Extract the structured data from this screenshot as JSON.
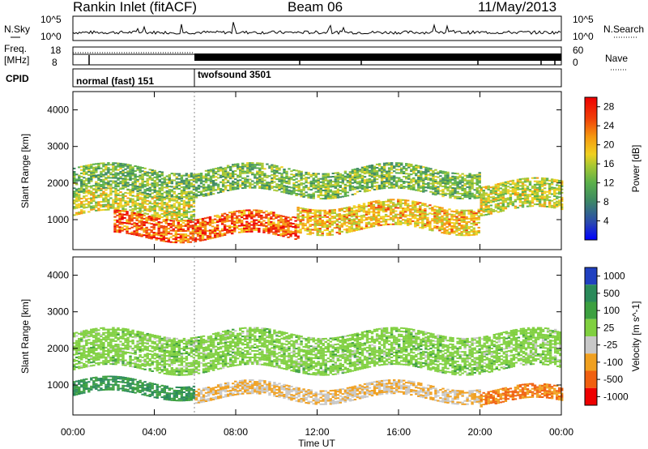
{
  "header": {
    "station": "Rankin Inlet (fitACF)",
    "beam": "Beam 06",
    "date": "11/May/2013"
  },
  "status_panels": {
    "nsky_label": "N.Sky",
    "nsky_ticks": [
      "10^5",
      "10^0"
    ],
    "nsearch_label": "N.Search",
    "nsearch_ticks": [
      "10^5",
      "10^0"
    ],
    "freq_label_line1": "Freq.",
    "freq_label_line2": "[MHz]",
    "freq_ticks": [
      "18",
      "8"
    ],
    "nave_label": "Nave",
    "nave_ticks": [
      "60",
      "0"
    ],
    "cpid_label": "CPID",
    "cpid_segments": [
      {
        "label": "normal (fast) 151",
        "start_hour": 0,
        "end_hour": 6
      },
      {
        "label": "twofsound 3501",
        "start_hour": 6,
        "end_hour": 24
      }
    ]
  },
  "chart_data": [
    {
      "type": "heatmap",
      "title": "",
      "ylabel": "Slant Range [km]",
      "xlim_hours": [
        0,
        24
      ],
      "ylim": [
        180,
        4500
      ],
      "y_ticks": [
        "4000",
        "3000",
        "2000",
        "1000"
      ],
      "colorbar": {
        "label": "Power [dB]",
        "ticks": [
          "28",
          "24",
          "20",
          "16",
          "12",
          "8",
          "4"
        ],
        "range": [
          0,
          30
        ],
        "colors": [
          "#0000ff",
          "#2a48b0",
          "#3e8a62",
          "#5ab04a",
          "#a8c832",
          "#f0d020",
          "#f59a10",
          "#f04008",
          "#ee0000"
        ]
      },
      "echo_bands": [
        {
          "range_km": [
            1100,
            1700
          ],
          "hours": [
            0,
            6
          ],
          "value": "17"
        },
        {
          "range_km": [
            500,
            1100
          ],
          "hours": [
            2,
            11
          ],
          "value": "25"
        },
        {
          "range_km": [
            1700,
            2400
          ],
          "hours": [
            0,
            20
          ],
          "value": "12"
        },
        {
          "range_km": [
            700,
            1400
          ],
          "hours": [
            11,
            20
          ],
          "value": "20"
        },
        {
          "range_km": [
            1200,
            2000
          ],
          "hours": [
            20,
            24
          ],
          "value": "16"
        }
      ]
    },
    {
      "type": "heatmap",
      "title": "",
      "ylabel": "Slant Range [km]",
      "xlabel": "Time UT",
      "xlim_hours": [
        0,
        24
      ],
      "ylim": [
        180,
        4500
      ],
      "x_ticks": [
        "00:00",
        "04:00",
        "08:00",
        "12:00",
        "16:00",
        "20:00",
        "00:00"
      ],
      "y_ticks": [
        "4000",
        "3000",
        "2000",
        "1000"
      ],
      "colorbar": {
        "label": "Velocity [m s^-1]",
        "ticks": [
          "1000",
          "500",
          "100",
          "25",
          "-25",
          "-100",
          "-500",
          "-1000"
        ],
        "colors": [
          "#2040c0",
          "#2a8a5a",
          "#3ca040",
          "#80d040",
          "#c8c8c8",
          "#f0a020",
          "#f06010",
          "#ee0000"
        ]
      },
      "echo_bands": [
        {
          "range_km": [
            1400,
            2400
          ],
          "hours": [
            0,
            24
          ],
          "value": "0"
        },
        {
          "range_km": [
            700,
            1100
          ],
          "hours": [
            0,
            6
          ],
          "value": "100"
        },
        {
          "range_km": [
            600,
            1000
          ],
          "hours": [
            6,
            20
          ],
          "value": "-100"
        },
        {
          "range_km": [
            500,
            900
          ],
          "hours": [
            20,
            24
          ],
          "value": "-500"
        }
      ]
    }
  ]
}
